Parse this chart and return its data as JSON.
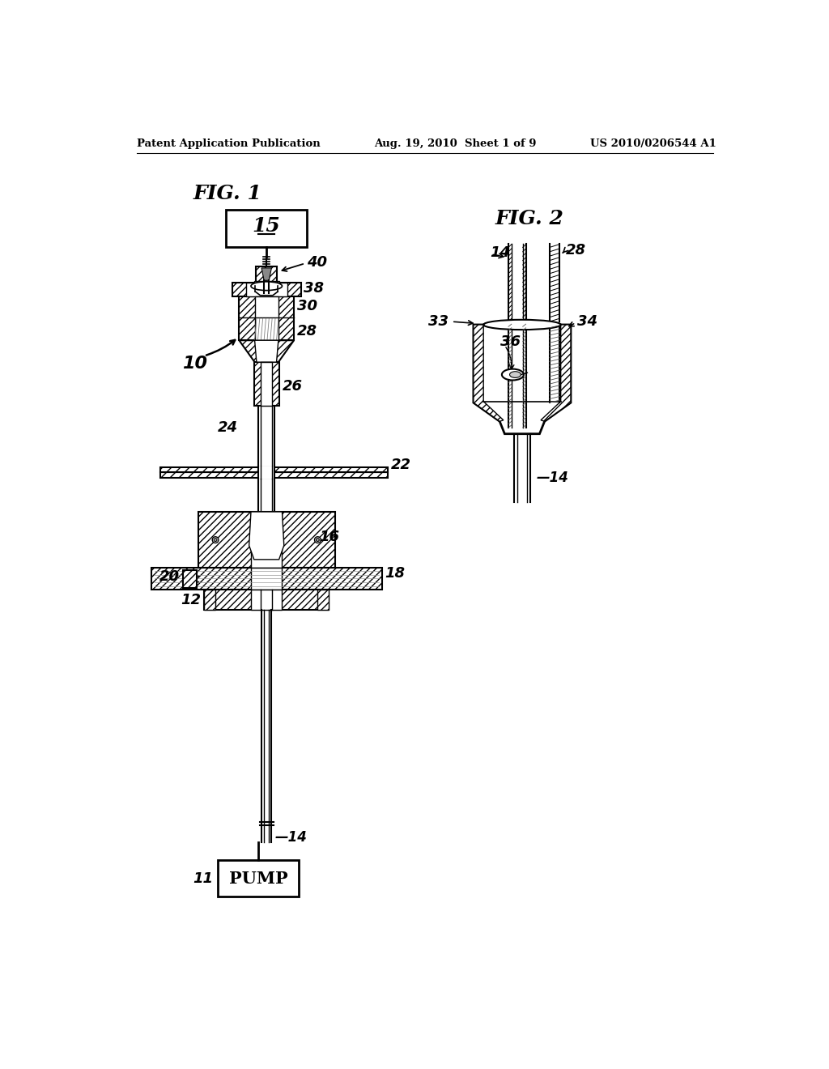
{
  "bg_color": "#ffffff",
  "header_left": "Patent Application Publication",
  "header_mid": "Aug. 19, 2010  Sheet 1 of 9",
  "header_right": "US 2010/0206544 A1",
  "fig1_title": "FIG. 1",
  "fig2_title": "FIG. 2",
  "label_15": "15",
  "label_40": "40",
  "label_38": "38",
  "label_30": "30",
  "label_28": "28",
  "label_26": "26",
  "label_24": "24",
  "label_22": "22",
  "label_16": "16",
  "label_18": "18",
  "label_20": "20",
  "label_12": "12",
  "label_14": "14",
  "label_10": "10",
  "label_11": "11",
  "label_PUMP": "PUMP",
  "label_33": "33",
  "label_36": "36",
  "label_34": "34",
  "label_28b": "28",
  "label_14b": "14"
}
